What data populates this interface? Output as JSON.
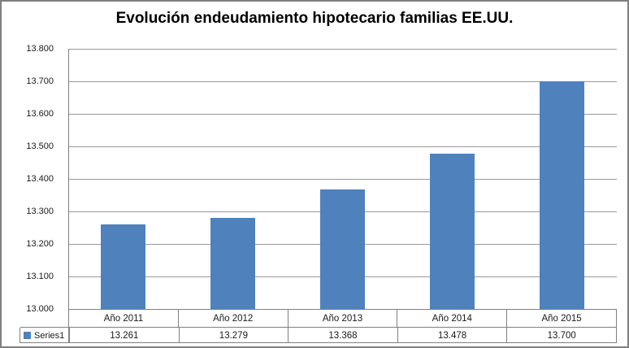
{
  "chart_data": {
    "type": "bar",
    "title": "Evolución endeudamiento hipotecario familias EE.UU.",
    "categories": [
      "Año 2011",
      "Año 2012",
      "Año 2013",
      "Año 2014",
      "Año 2015"
    ],
    "series": [
      {
        "name": "Series1",
        "color": "#4F81BD",
        "values": [
          13261,
          13279,
          13368,
          13478,
          13700
        ],
        "value_labels": [
          "13.261",
          "13.279",
          "13.368",
          "13.478",
          "13.700"
        ]
      }
    ],
    "xlabel": "",
    "ylabel": "",
    "ylim": [
      13000,
      13800
    ],
    "ytick_step": 100,
    "ytick_labels": [
      "13.800",
      "13.700",
      "13.600",
      "13.500",
      "13.400",
      "13.300",
      "13.200",
      "13.100",
      "13.000"
    ],
    "grid": true,
    "legend_position": "data-table"
  },
  "colors": {
    "bar": "#4F81BD",
    "gridline": "#9A9A9A",
    "border": "#808080",
    "text": "#1A1A1A",
    "background": "#FFFFFF"
  }
}
